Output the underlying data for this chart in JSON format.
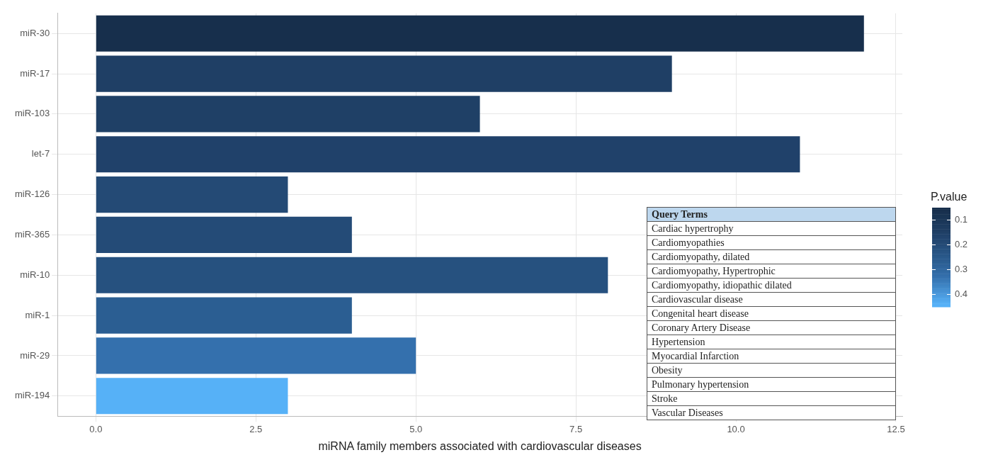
{
  "chart_data": {
    "type": "bar",
    "orientation": "horizontal",
    "xlabel": "miRNA family members associated with cardiovascular diseases",
    "categories": [
      "miR-30",
      "miR-17",
      "miR-103",
      "let-7",
      "miR-126",
      "miR-365",
      "miR-10",
      "miR-1",
      "miR-29",
      "miR-194"
    ],
    "values": [
      12,
      9,
      6,
      11,
      3,
      4,
      8,
      4,
      5,
      3
    ],
    "colors": [
      "#172f4c",
      "#1f3f65",
      "#1f4066",
      "#20416a",
      "#244a75",
      "#244b77",
      "#26517f",
      "#2b5e92",
      "#3470ad",
      "#56b1f7"
    ],
    "cvalues": [
      0.06,
      0.15,
      0.15,
      0.16,
      0.2,
      0.2,
      0.22,
      0.27,
      0.33,
      0.44
    ],
    "clabel": "P.value",
    "clim": [
      0.05,
      0.45
    ],
    "cticks": [
      0.1,
      0.2,
      0.3,
      0.4
    ],
    "xlim": [
      -0.6,
      12.6
    ],
    "xticks": [
      {
        "value": 0,
        "label": "0.0"
      },
      2.5,
      {
        "value": 5,
        "label": "5.0"
      },
      7.5,
      {
        "value": 10,
        "label": "10.0"
      },
      12.5
    ],
    "grid": true,
    "legend": false,
    "annotations": [
      "Query Terms",
      "Cardiac hypertrophy",
      "Cardiomyopathies",
      "Cardiomyopathy, dilated",
      "Cardiomyopathy, Hypertrophic",
      "Cardiomyopathy, idiopathic dilated",
      "Cardiovascular disease",
      "Congenital heart disease",
      "Coronary Artery Disease",
      "Hypertension",
      "Myocardial Infarction",
      "Obesity",
      "Pulmonary hypertension",
      "Stroke",
      "Vascular Diseases"
    ]
  }
}
